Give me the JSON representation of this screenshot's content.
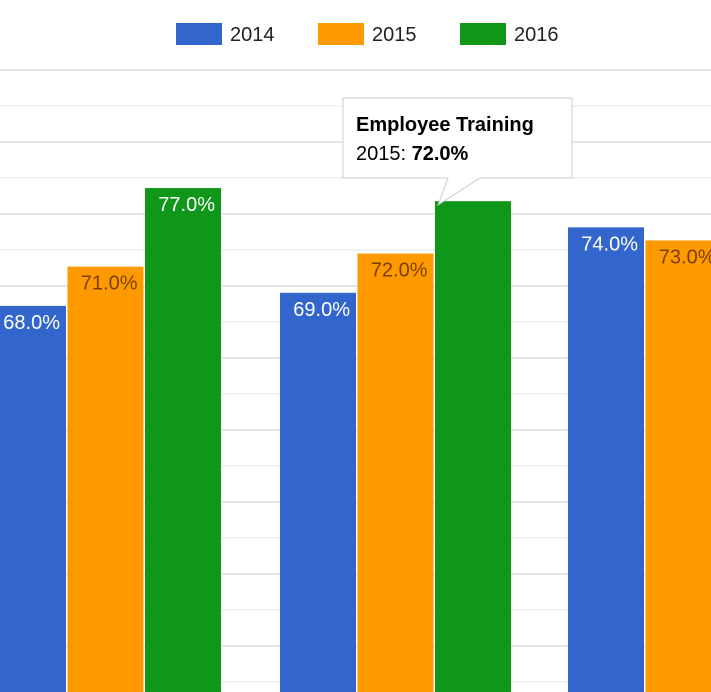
{
  "chart_data": {
    "type": "bar",
    "title": "",
    "xlabel": "",
    "ylabel": "",
    "ylim": [
      0,
      100
    ],
    "grid": true,
    "legend_position": "top",
    "categories": [
      "",
      "Employee Training",
      ""
    ],
    "series": [
      {
        "name": "2014",
        "color": "#3366cc",
        "values": [
          68.0,
          69.0,
          74.0
        ],
        "labels": [
          "68.0%",
          "69.0%",
          "74.0%"
        ]
      },
      {
        "name": "2015",
        "color": "#ff9900",
        "values": [
          71.0,
          72.0,
          73.0
        ],
        "labels": [
          "71.0%",
          "72.0%",
          "73.0%"
        ]
      },
      {
        "name": "2016",
        "color": "#109618",
        "values": [
          77.0,
          76.0,
          null
        ],
        "labels": [
          "77.0%",
          "",
          ""
        ]
      }
    ]
  },
  "tooltip": {
    "title": "Employee Training",
    "series_label": "2015: ",
    "value": "72.0%"
  },
  "colors": {
    "label_on_dark": "#ffffff",
    "label_on_orange": "#7a3f00",
    "gridline": "#e6e6e6"
  }
}
